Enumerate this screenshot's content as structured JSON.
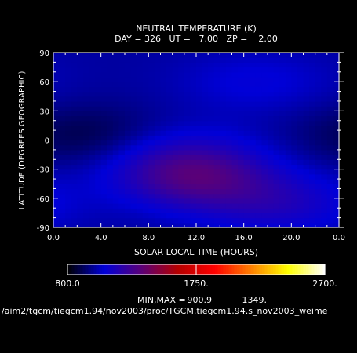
{
  "chart_data": {
    "type": "heatmap",
    "title": "NEUTRAL TEMPERATURE (K)",
    "subtitle": "DAY = 326   UT =   7.00   ZP =    2.00",
    "xlabel": "SOLAR LOCAL TIME (HOURS)",
    "ylabel": "LATITUDE (DEGREES GEOGRAPHIC)",
    "xlim": [
      0,
      24
    ],
    "ylim": [
      -90,
      90
    ],
    "x_tick_labels": [
      "0.0",
      "4.0",
      "8.0",
      "12.0",
      "16.0",
      "20.0",
      "0.0"
    ],
    "y_tick_labels": [
      "90",
      "60",
      "30",
      "0",
      "-30",
      "-60",
      "-90"
    ],
    "grid": false,
    "colorbar": {
      "min_label": "800.0",
      "mid_label": "1750.",
      "max_label": "2700.",
      "range": [
        800,
        2700
      ],
      "colors": [
        "#000000",
        "#0000d8",
        "#5a0078",
        "#b40000",
        "#ff0000",
        "#ff8000",
        "#ffff00",
        "#ffffff"
      ]
    },
    "field": {
      "base_K": 1000,
      "features": [
        {
          "solar_local_time_h": 12.0,
          "latitude_deg": -40,
          "delta_K": 260
        },
        {
          "solar_local_time_h": 19.0,
          "latitude_deg": -65,
          "delta_K": 140
        },
        {
          "solar_local_time_h": 10.5,
          "latitude_deg": -15,
          "delta_K": 120
        },
        {
          "solar_local_time_h": 3.0,
          "latitude_deg": 5,
          "delta_K": -110
        },
        {
          "solar_local_time_h": 17.0,
          "latitude_deg": 60,
          "delta_K": 80
        }
      ]
    },
    "minmax_label": "MIN,MAX =",
    "min_value": "900.9",
    "max_value": "1349."
  },
  "footer": {
    "path": "/aim2/tgcm/tiegcm1.94/nov2003/proc/TGCM.tiegcm1.94.s_nov2003_weime"
  }
}
